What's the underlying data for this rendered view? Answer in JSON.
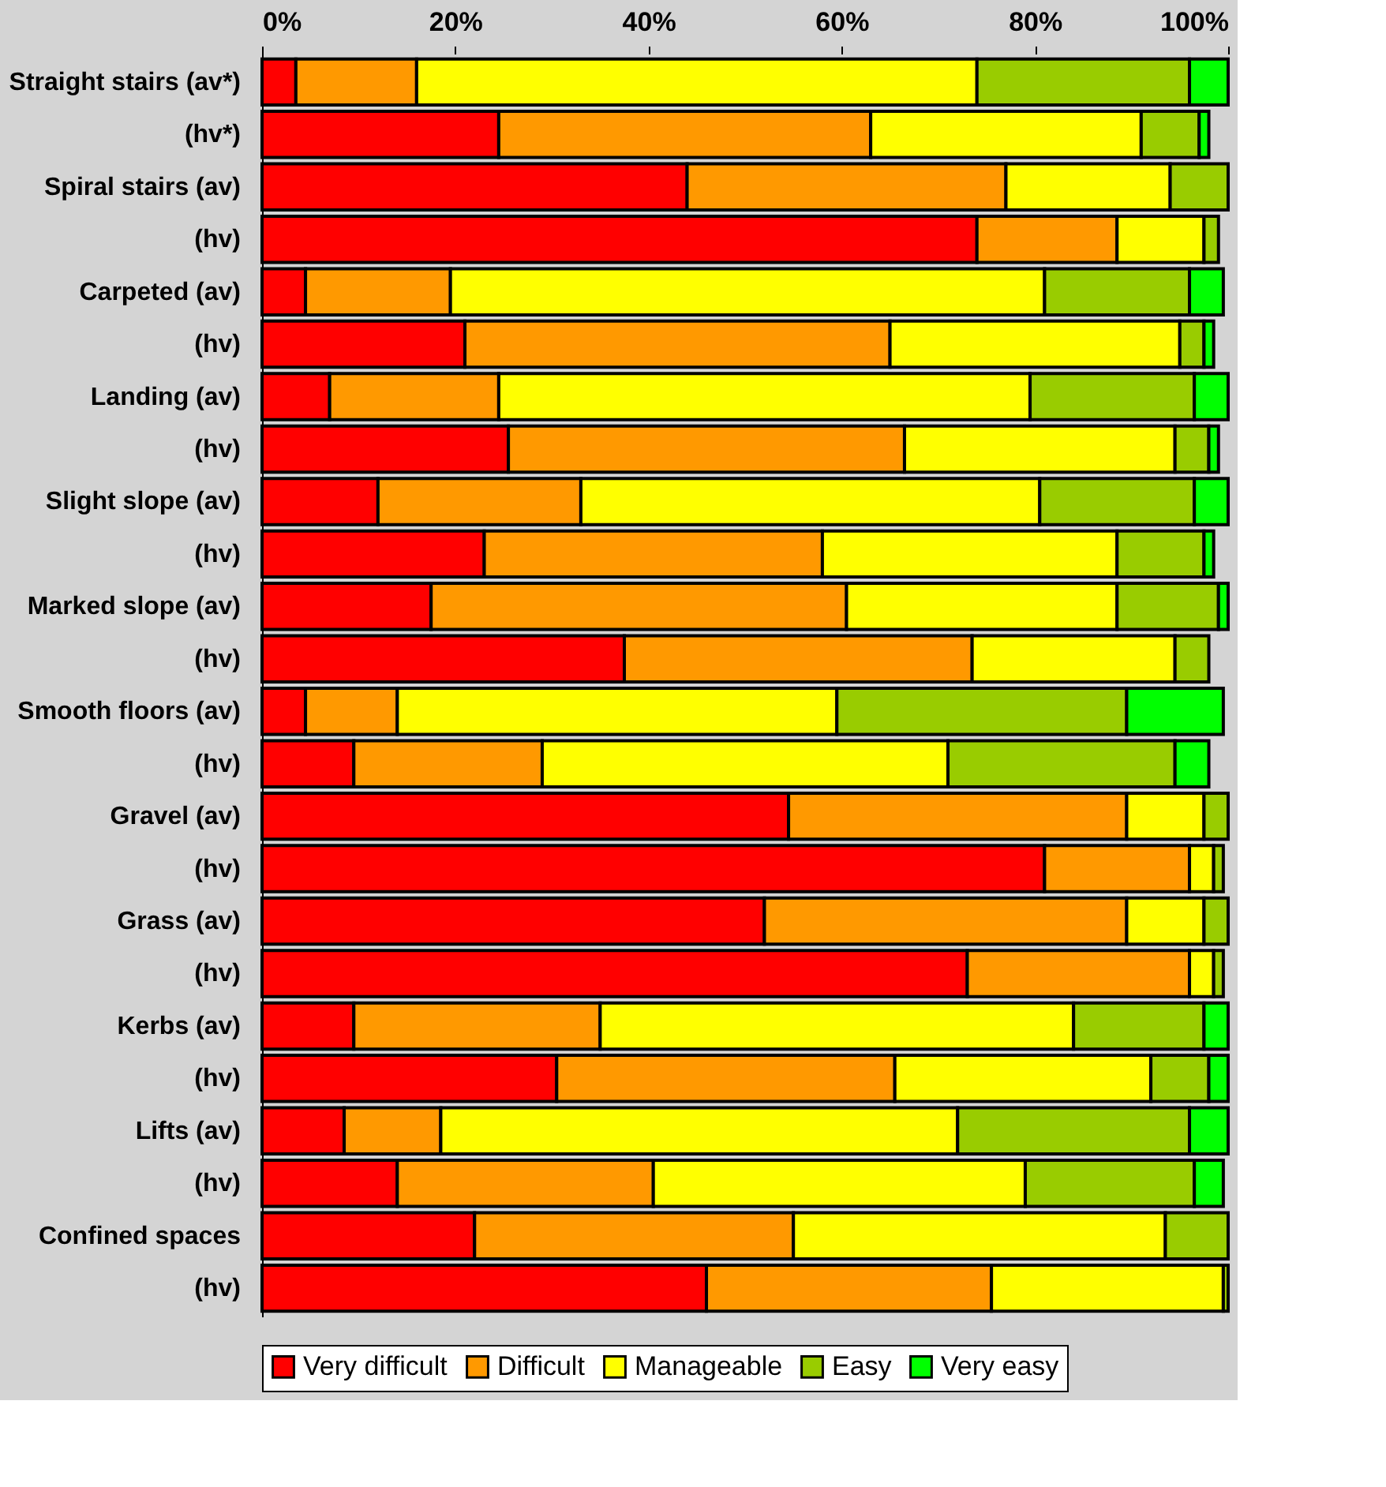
{
  "chart_data": {
    "type": "bar",
    "orientation": "horizontal",
    "stacked": true,
    "categories": [
      "Straight stairs (av*)",
      "(hv*)",
      "Spiral stairs (av)",
      "(hv)",
      "Carpeted (av)",
      "(hv)",
      "Landing (av)",
      "(hv)",
      "Slight slope (av)",
      "(hv)",
      "Marked slope (av)",
      "(hv)",
      "Smooth floors (av)",
      "(hv)",
      "Gravel (av)",
      "(hv)",
      "Grass (av)",
      "(hv)",
      "Kerbs (av)",
      "(hv)",
      "Lifts (av)",
      "(hv)",
      "Confined spaces",
      "(hv)"
    ],
    "series": [
      {
        "name": "Very difficult",
        "color": "#ff0000",
        "values": [
          3.5,
          24.5,
          44,
          74,
          4.5,
          21,
          7,
          25.5,
          12,
          23,
          17.5,
          37.5,
          4.5,
          9.5,
          54.5,
          81,
          52,
          73,
          9.5,
          30.5,
          8.5,
          14,
          22,
          46
        ]
      },
      {
        "name": "Difficult",
        "color": "#ff9900",
        "values": [
          12.5,
          38.5,
          33,
          14.5,
          15,
          44,
          17.5,
          41,
          21,
          35,
          43,
          36,
          9.5,
          19.5,
          35,
          15,
          37.5,
          23,
          25.5,
          35,
          10,
          26.5,
          33,
          29.5
        ]
      },
      {
        "name": "Manageable",
        "color": "#ffff00",
        "values": [
          58,
          28,
          17,
          9,
          61.5,
          30,
          55,
          28,
          47.5,
          30.5,
          28,
          21,
          45.5,
          42,
          8,
          2.5,
          8,
          2.5,
          49,
          26.5,
          53.5,
          38.5,
          38.5,
          24
        ]
      },
      {
        "name": "Easy",
        "color": "#99cc00",
        "values": [
          22,
          6,
          6,
          1.5,
          15,
          2.5,
          17,
          3.5,
          16,
          9,
          10.5,
          3.5,
          30,
          23.5,
          2.5,
          1,
          2.5,
          1,
          13.5,
          6,
          24,
          17.5,
          6.5,
          0.5
        ]
      },
      {
        "name": "Very easy",
        "color": "#00ff00",
        "values": [
          4,
          1,
          null,
          null,
          3.5,
          1,
          3.5,
          1,
          3.5,
          1,
          1,
          null,
          10,
          3.5,
          null,
          null,
          null,
          null,
          2.5,
          2,
          4,
          3,
          null,
          null
        ]
      }
    ],
    "xlim": [
      0,
      100
    ],
    "xticks": [
      {
        "value": 0,
        "label": "0%"
      },
      {
        "value": 20,
        "label": "20%"
      },
      {
        "value": 40,
        "label": "40%"
      },
      {
        "value": 60,
        "label": "60%"
      },
      {
        "value": 80,
        "label": "80%"
      },
      {
        "value": 100,
        "label": "100%"
      }
    ],
    "grid": false,
    "legend": "bottom"
  }
}
